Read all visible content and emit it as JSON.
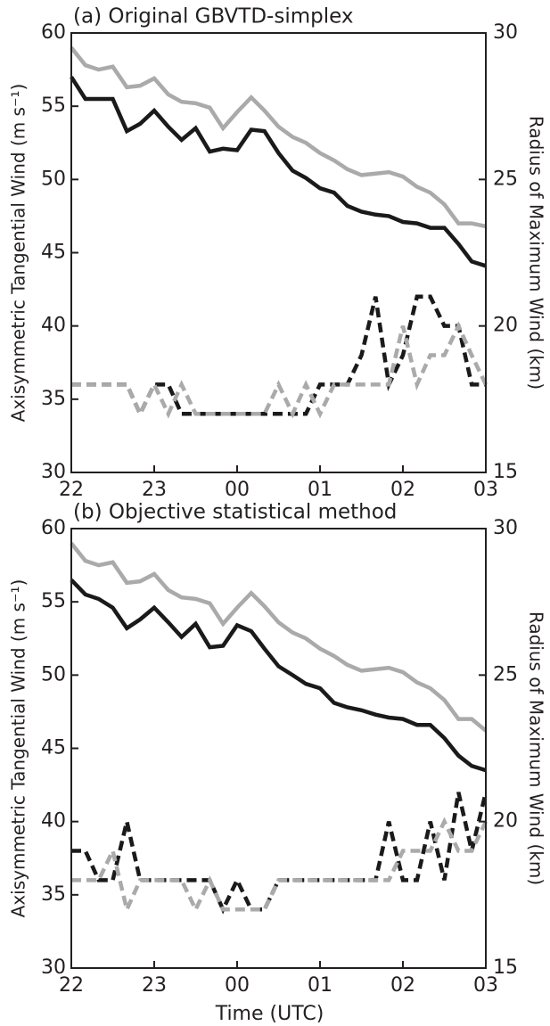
{
  "chart_data": [
    {
      "type": "line",
      "title": "(a) Original GBVTD-simplex",
      "ylabel": "Axisymmetric Tangential Wind (m s⁻¹)",
      "y2label": "Radius of Maximum Wind (km)",
      "x": [
        0,
        0.17,
        0.33,
        0.5,
        0.67,
        0.83,
        1,
        1.17,
        1.33,
        1.5,
        1.67,
        1.83,
        2,
        2.17,
        2.33,
        2.5,
        2.67,
        2.83,
        3,
        3.17,
        3.33,
        3.5,
        3.67,
        3.83,
        4,
        4.17,
        4.33,
        4.5,
        4.67,
        4.83,
        5
      ],
      "xlim": [
        0,
        5
      ],
      "xticks": [
        {
          "value": 0,
          "label": "22"
        },
        {
          "value": 1,
          "label": "23"
        },
        {
          "value": 2,
          "label": "00"
        },
        {
          "value": 3,
          "label": "01"
        },
        {
          "value": 4,
          "label": "02"
        },
        {
          "value": 5,
          "label": "03"
        }
      ],
      "ylim": [
        30,
        60
      ],
      "yticks": [
        30,
        35,
        40,
        45,
        50,
        55,
        60
      ],
      "y2lim": [
        15,
        30
      ],
      "y2ticks": [
        15,
        20,
        25,
        30
      ],
      "series": [
        {
          "color": "#1a1a1a",
          "linestyle": "solid",
          "values": [
            57,
            55.5,
            55.5,
            55.5,
            53.3,
            53.8,
            54.7,
            53.6,
            52.7,
            53.5,
            51.9,
            52.1,
            52,
            53.4,
            53.3,
            51.8,
            50.6,
            50.1,
            49.4,
            49.1,
            48.2,
            47.8,
            47.6,
            47.5,
            47.1,
            47.0,
            46.7,
            46.7,
            45.6,
            44.4,
            44.1
          ]
        },
        {
          "color": "#aaaaaa",
          "linestyle": "solid",
          "values": [
            59,
            57.8,
            57.5,
            57.7,
            56.3,
            56.4,
            56.9,
            55.8,
            55.3,
            55.2,
            54.9,
            53.5,
            54.6,
            55.6,
            54.7,
            53.6,
            52.9,
            52.5,
            51.8,
            51.3,
            50.7,
            50.3,
            50.4,
            50.5,
            50.2,
            49.5,
            49.1,
            48.3,
            47.0,
            47.0,
            46.8
          ]
        },
        {
          "color": "#1a1a1a",
          "linestyle": "dashed",
          "axis": "y2",
          "values": [
            18,
            18,
            18,
            18,
            18,
            17,
            18,
            18,
            17,
            17,
            17,
            17,
            17,
            17,
            17,
            17,
            17,
            17,
            18,
            18,
            18,
            19,
            21,
            18,
            19,
            21,
            21,
            20,
            20,
            18,
            18
          ]
        },
        {
          "color": "#aaaaaa",
          "linestyle": "dashed",
          "axis": "y2",
          "values": [
            18,
            18,
            18,
            18,
            18,
            17,
            18,
            17,
            18,
            17,
            17,
            17,
            17,
            17,
            17,
            18,
            17,
            18,
            17,
            18,
            18,
            18,
            18,
            18,
            20,
            18,
            19,
            19,
            20,
            19,
            18
          ]
        }
      ]
    },
    {
      "type": "line",
      "title": "(b) Objective statistical method",
      "ylabel": "Axisymmetric Tangential Wind (m s⁻¹)",
      "y2label": "Radius of Maximum Wind (km)",
      "xlabel": "Time (UTC)",
      "x": [
        0,
        0.17,
        0.33,
        0.5,
        0.67,
        0.83,
        1,
        1.17,
        1.33,
        1.5,
        1.67,
        1.83,
        2,
        2.17,
        2.33,
        2.5,
        2.67,
        2.83,
        3,
        3.17,
        3.33,
        3.5,
        3.67,
        3.83,
        4,
        4.17,
        4.33,
        4.5,
        4.67,
        4.83,
        5
      ],
      "xlim": [
        0,
        5
      ],
      "xticks": [
        {
          "value": 0,
          "label": "22"
        },
        {
          "value": 1,
          "label": "23"
        },
        {
          "value": 2,
          "label": "00"
        },
        {
          "value": 3,
          "label": "01"
        },
        {
          "value": 4,
          "label": "02"
        },
        {
          "value": 5,
          "label": "03"
        }
      ],
      "ylim": [
        30,
        60
      ],
      "yticks": [
        30,
        35,
        40,
        45,
        50,
        55,
        60
      ],
      "y2lim": [
        15,
        30
      ],
      "y2ticks": [
        15,
        20,
        25,
        30
      ],
      "series": [
        {
          "color": "#1a1a1a",
          "linestyle": "solid",
          "values": [
            56.5,
            55.5,
            55.2,
            54.6,
            53.2,
            53.8,
            54.6,
            53.6,
            52.6,
            53.5,
            51.9,
            52.0,
            53.4,
            53.0,
            51.8,
            50.6,
            50.0,
            49.4,
            49.1,
            48.1,
            47.8,
            47.6,
            47.3,
            47.1,
            47.0,
            46.6,
            46.6,
            45.7,
            44.5,
            43.8,
            43.5
          ]
        },
        {
          "color": "#aaaaaa",
          "linestyle": "solid",
          "values": [
            59,
            57.8,
            57.5,
            57.7,
            56.3,
            56.4,
            56.9,
            55.8,
            55.3,
            55.2,
            54.9,
            53.5,
            54.6,
            55.6,
            54.7,
            53.6,
            52.9,
            52.5,
            51.8,
            51.3,
            50.7,
            50.3,
            50.4,
            50.5,
            50.2,
            49.5,
            49.1,
            48.3,
            47.0,
            47.0,
            46.2
          ]
        },
        {
          "color": "#1a1a1a",
          "linestyle": "dashed",
          "axis": "y2",
          "values": [
            19,
            19,
            18,
            18,
            20,
            18,
            18,
            18,
            18,
            18,
            18,
            17,
            18,
            17,
            17,
            18,
            18,
            18,
            18,
            18,
            18,
            18,
            18,
            20,
            18,
            18,
            20,
            18,
            21,
            19,
            21
          ]
        },
        {
          "color": "#aaaaaa",
          "linestyle": "dashed",
          "axis": "y2",
          "values": [
            18,
            18,
            18,
            19,
            17,
            18,
            18,
            18,
            18,
            17,
            18,
            17,
            17,
            17,
            17,
            18,
            18,
            18,
            18,
            18,
            18,
            18,
            18,
            18,
            19,
            19,
            19,
            20,
            19,
            19,
            20
          ]
        }
      ]
    }
  ]
}
